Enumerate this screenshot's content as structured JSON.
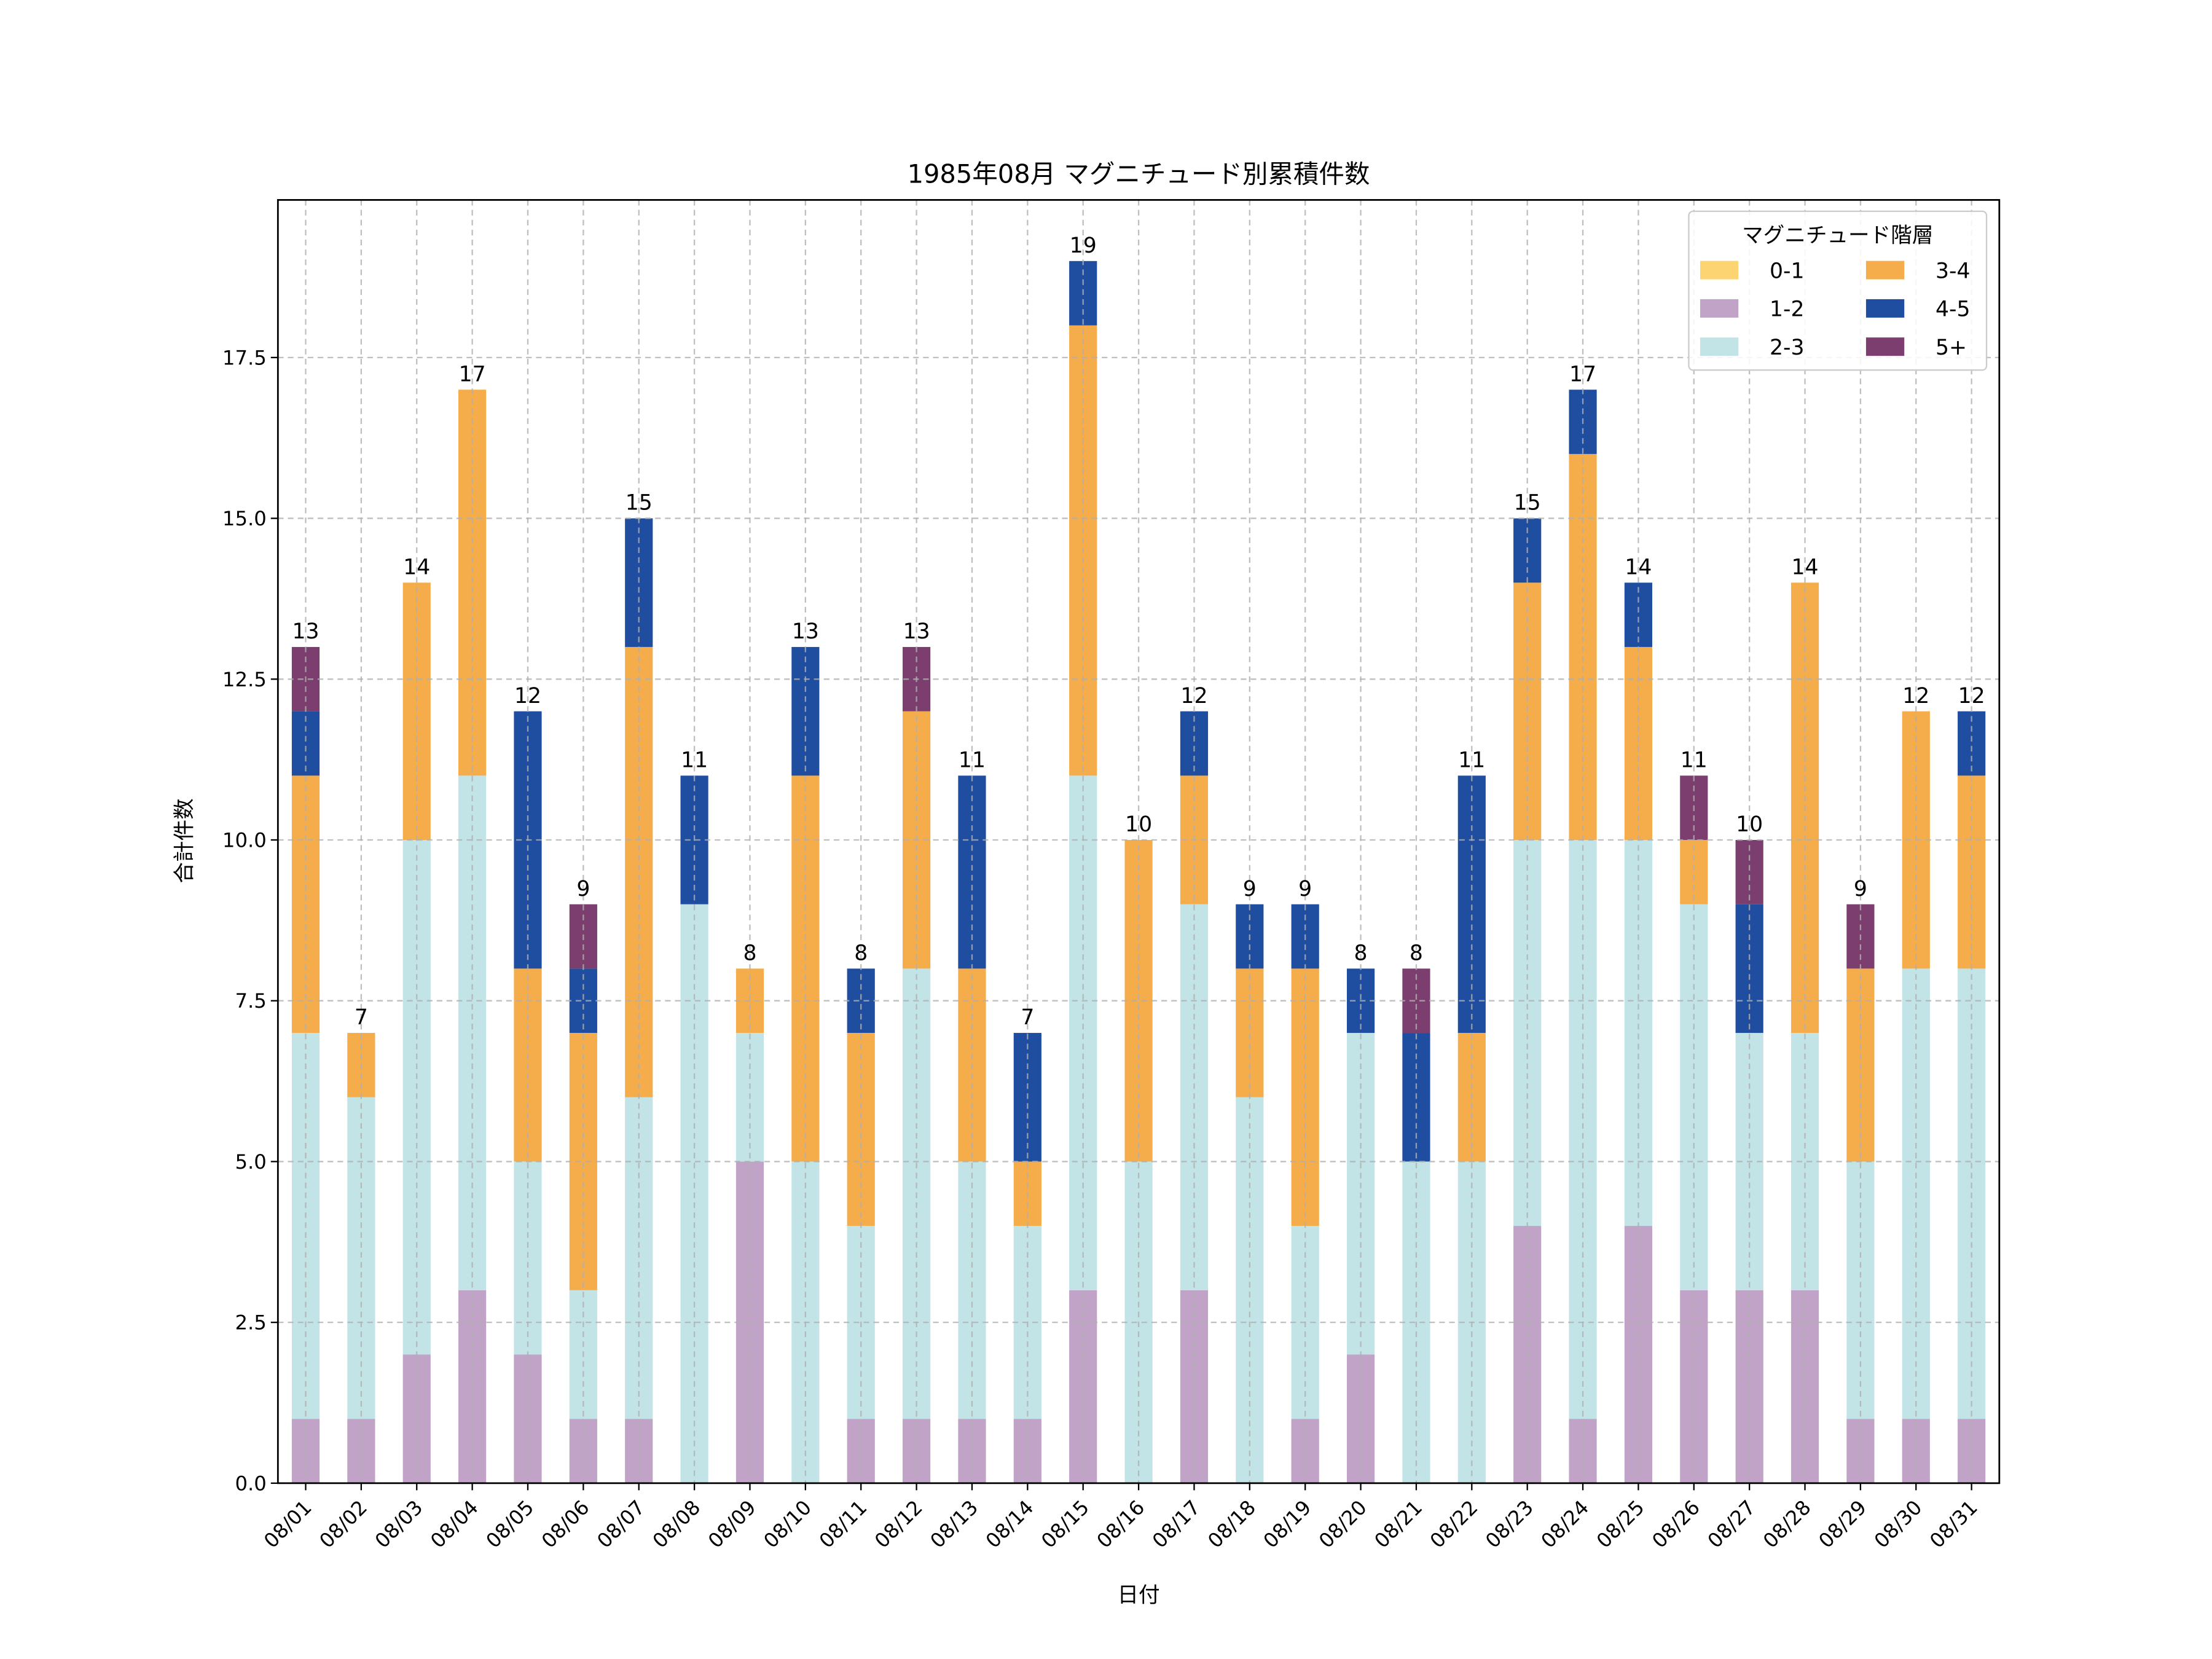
{
  "chart_data": {
    "type": "bar",
    "stacked": true,
    "title": "1985年08月 マグニチュード別累積件数",
    "xlabel": "日付",
    "ylabel": "合計件数",
    "ylim": [
      0,
      19.95
    ],
    "yticks": [
      "0.0",
      "2.5",
      "5.0",
      "7.5",
      "10.0",
      "12.5",
      "15.0",
      "17.5"
    ],
    "ytick_values": [
      0,
      2.5,
      5,
      7.5,
      10,
      12.5,
      15,
      17.5
    ],
    "grid": true,
    "legend": {
      "title": "マグニチュード階層",
      "placement": "top-right",
      "columns": 2
    },
    "categories": [
      "08/01",
      "08/02",
      "08/03",
      "08/04",
      "08/05",
      "08/06",
      "08/07",
      "08/08",
      "08/09",
      "08/10",
      "08/11",
      "08/12",
      "08/13",
      "08/14",
      "08/15",
      "08/16",
      "08/17",
      "08/18",
      "08/19",
      "08/20",
      "08/21",
      "08/22",
      "08/23",
      "08/24",
      "08/25",
      "08/26",
      "08/27",
      "08/28",
      "08/29",
      "08/30",
      "08/31"
    ],
    "series": [
      {
        "name": "0-1",
        "color": "#fcd471",
        "values": [
          0,
          0,
          0,
          0,
          0,
          0,
          0,
          0,
          0,
          0,
          0,
          0,
          0,
          0,
          0,
          0,
          0,
          0,
          0,
          0,
          0,
          0,
          0,
          0,
          0,
          0,
          0,
          0,
          0,
          0,
          0
        ]
      },
      {
        "name": "1-2",
        "color": "#c0a3c7",
        "values": [
          1,
          1,
          2,
          3,
          2,
          1,
          1,
          0,
          5,
          0,
          1,
          1,
          1,
          1,
          3,
          0,
          3,
          0,
          1,
          2,
          0,
          0,
          4,
          1,
          4,
          3,
          3,
          3,
          1,
          1,
          1
        ]
      },
      {
        "name": "2-3",
        "color": "#c2e4e7",
        "values": [
          6,
          5,
          8,
          8,
          3,
          2,
          5,
          9,
          2,
          5,
          3,
          7,
          4,
          3,
          8,
          5,
          6,
          6,
          3,
          5,
          5,
          5,
          6,
          9,
          6,
          6,
          4,
          4,
          4,
          7,
          7
        ]
      },
      {
        "name": "3-4",
        "color": "#f5ac4a",
        "values": [
          4,
          1,
          4,
          6,
          3,
          4,
          7,
          0,
          1,
          6,
          3,
          4,
          3,
          1,
          7,
          5,
          2,
          2,
          4,
          0,
          0,
          2,
          4,
          6,
          3,
          1,
          0,
          7,
          3,
          4,
          3
        ]
      },
      {
        "name": "4-5",
        "color": "#1f4ea1",
        "values": [
          1,
          0,
          0,
          0,
          4,
          1,
          2,
          2,
          0,
          2,
          1,
          0,
          3,
          2,
          1,
          0,
          1,
          1,
          1,
          1,
          2,
          4,
          1,
          1,
          1,
          0,
          2,
          0,
          0,
          0,
          1
        ]
      },
      {
        "name": "5+",
        "color": "#7b3e6e",
        "values": [
          1,
          0,
          0,
          0,
          0,
          1,
          0,
          0,
          0,
          0,
          0,
          1,
          0,
          0,
          0,
          0,
          0,
          0,
          0,
          0,
          1,
          0,
          0,
          0,
          0,
          1,
          1,
          0,
          1,
          0,
          0
        ]
      }
    ],
    "totals": [
      "13",
      "7",
      "14",
      "17",
      "12",
      "9",
      "15",
      "11",
      "8",
      "13",
      "8",
      "13",
      "11",
      "7",
      "19",
      "10",
      "12",
      "9",
      "9",
      "8",
      "8",
      "11",
      "15",
      "17",
      "14",
      "11",
      "10",
      "14",
      "9",
      "12",
      "12"
    ]
  }
}
